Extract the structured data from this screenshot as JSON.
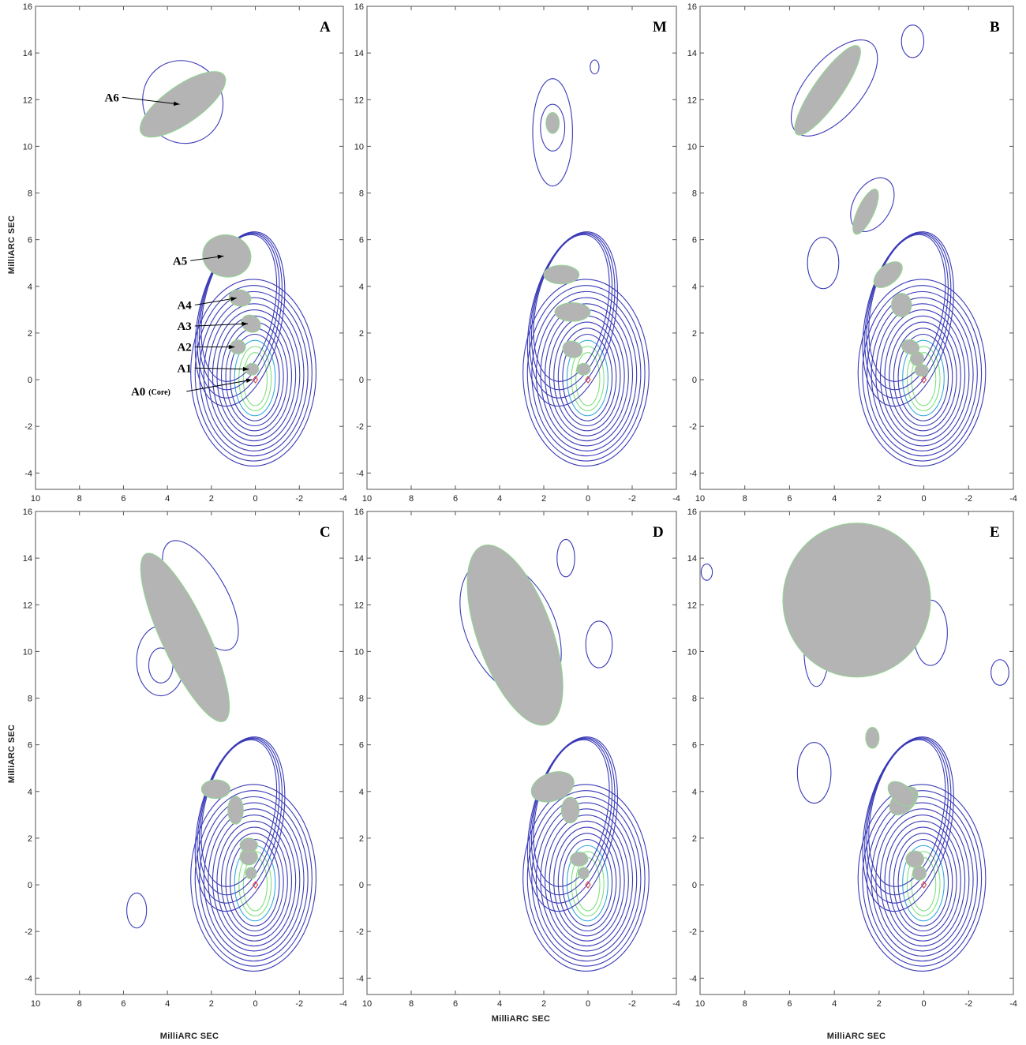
{
  "figure": {
    "xlabel": "MilliARC SEC",
    "ylabel": "MilliARC SEC",
    "x_ticks": [
      10,
      8,
      6,
      4,
      2,
      0,
      -2,
      -4
    ],
    "y_ticks": [
      16,
      14,
      12,
      10,
      8,
      6,
      4,
      2,
      0,
      -2,
      -4
    ],
    "colors": {
      "outer_contour": "#3a3ab8",
      "inner_contour_cyan": "#33aadd",
      "inner_contour_green": "#7fe07f",
      "component_fill": "#b4b4b4",
      "component_edge": "#90d890",
      "core_marker": "#dd3333"
    }
  },
  "chart_data": [
    {
      "type": "contour",
      "panel": "A",
      "xlim": [
        10,
        -4
      ],
      "ylim": [
        -4.5,
        16
      ],
      "components": [
        {
          "label": "A0",
          "sublabel": "(Core)",
          "x": 0.0,
          "y": 0.0,
          "a": 0.0,
          "b": 0.0,
          "pa": 0
        },
        {
          "label": "A1",
          "x": 0.15,
          "y": 0.45,
          "a": 0.3,
          "b": 0.25,
          "pa": 0
        },
        {
          "label": "A2",
          "x": 0.8,
          "y": 1.4,
          "a": 0.35,
          "b": 0.3,
          "pa": 0
        },
        {
          "label": "A3",
          "x": 0.2,
          "y": 2.4,
          "a": 0.45,
          "b": 0.35,
          "pa": 30
        },
        {
          "label": "A4",
          "x": 0.7,
          "y": 3.5,
          "a": 0.5,
          "b": 0.35,
          "pa": 10
        },
        {
          "label": "A5",
          "x": 1.3,
          "y": 5.3,
          "a": 1.1,
          "b": 0.9,
          "pa": 10
        },
        {
          "label": "A6",
          "x": 3.3,
          "y": 11.8,
          "a": 2.3,
          "b": 0.8,
          "pa": -35
        }
      ]
    },
    {
      "type": "contour",
      "panel": "M",
      "xlim": [
        10,
        -4
      ],
      "ylim": [
        -4.5,
        16
      ],
      "components": [
        {
          "x": 0.2,
          "y": 0.45,
          "a": 0.3,
          "b": 0.25,
          "pa": 0
        },
        {
          "x": 0.7,
          "y": 1.3,
          "a": 0.45,
          "b": 0.35,
          "pa": 20
        },
        {
          "x": 0.7,
          "y": 2.9,
          "a": 0.8,
          "b": 0.4,
          "pa": 0
        },
        {
          "x": 1.2,
          "y": 4.5,
          "a": 0.8,
          "b": 0.4,
          "pa": 0
        },
        {
          "x": 1.6,
          "y": 11.0,
          "a": 0.3,
          "b": 0.45,
          "pa": 0
        }
      ]
    },
    {
      "type": "contour",
      "panel": "B",
      "xlim": [
        10,
        -4
      ],
      "ylim": [
        -4.5,
        16
      ],
      "components": [
        {
          "x": 0.1,
          "y": 0.4,
          "a": 0.3,
          "b": 0.25,
          "pa": 0
        },
        {
          "x": 0.3,
          "y": 0.9,
          "a": 0.3,
          "b": 0.3,
          "pa": 0
        },
        {
          "x": 0.6,
          "y": 1.4,
          "a": 0.4,
          "b": 0.3,
          "pa": 20
        },
        {
          "x": 1.0,
          "y": 3.2,
          "a": 0.45,
          "b": 0.5,
          "pa": 0
        },
        {
          "x": 1.6,
          "y": 4.5,
          "a": 0.75,
          "b": 0.4,
          "pa": -40
        },
        {
          "x": 2.6,
          "y": 7.2,
          "a": 1.1,
          "b": 0.35,
          "pa": -65
        },
        {
          "x": 4.3,
          "y": 12.4,
          "a": 2.4,
          "b": 0.6,
          "pa": -55
        }
      ]
    },
    {
      "type": "contour",
      "panel": "C",
      "xlim": [
        10,
        -4
      ],
      "ylim": [
        -4.5,
        16
      ],
      "components": [
        {
          "x": 0.2,
          "y": 0.5,
          "a": 0.25,
          "b": 0.25,
          "pa": 0
        },
        {
          "x": 0.3,
          "y": 1.2,
          "a": 0.4,
          "b": 0.35,
          "pa": 0
        },
        {
          "x": 0.3,
          "y": 1.7,
          "a": 0.4,
          "b": 0.3,
          "pa": 0
        },
        {
          "x": 0.9,
          "y": 3.2,
          "a": 0.35,
          "b": 0.6,
          "pa": 0
        },
        {
          "x": 1.8,
          "y": 4.1,
          "a": 0.65,
          "b": 0.4,
          "pa": 0
        },
        {
          "x": 3.2,
          "y": 10.6,
          "a": 4.2,
          "b": 1.0,
          "pa": 65
        }
      ]
    },
    {
      "type": "contour",
      "panel": "D",
      "xlim": [
        10,
        -4
      ],
      "ylim": [
        -4.5,
        16
      ],
      "components": [
        {
          "x": 0.2,
          "y": 0.5,
          "a": 0.25,
          "b": 0.25,
          "pa": 0
        },
        {
          "x": 0.4,
          "y": 1.1,
          "a": 0.4,
          "b": 0.3,
          "pa": 0
        },
        {
          "x": 0.8,
          "y": 3.2,
          "a": 0.4,
          "b": 0.55,
          "pa": 0
        },
        {
          "x": 1.6,
          "y": 4.2,
          "a": 1.0,
          "b": 0.6,
          "pa": -20
        },
        {
          "x": 3.3,
          "y": 10.7,
          "a": 4.3,
          "b": 1.6,
          "pa": 70
        }
      ]
    },
    {
      "type": "contour",
      "panel": "E",
      "xlim": [
        10,
        -4
      ],
      "ylim": [
        -4.5,
        16
      ],
      "components": [
        {
          "x": 0.2,
          "y": 0.5,
          "a": 0.3,
          "b": 0.3,
          "pa": 0
        },
        {
          "x": 0.4,
          "y": 1.1,
          "a": 0.4,
          "b": 0.35,
          "pa": 0
        },
        {
          "x": 0.9,
          "y": 3.6,
          "a": 0.75,
          "b": 0.45,
          "pa": -45
        },
        {
          "x": 1.0,
          "y": 3.9,
          "a": 0.7,
          "b": 0.4,
          "pa": 40
        },
        {
          "x": 2.3,
          "y": 6.3,
          "a": 0.3,
          "b": 0.45,
          "pa": 0
        },
        {
          "x": 3.0,
          "y": 12.2,
          "a": 3.3,
          "b": 3.3,
          "pa": 0
        }
      ]
    }
  ]
}
